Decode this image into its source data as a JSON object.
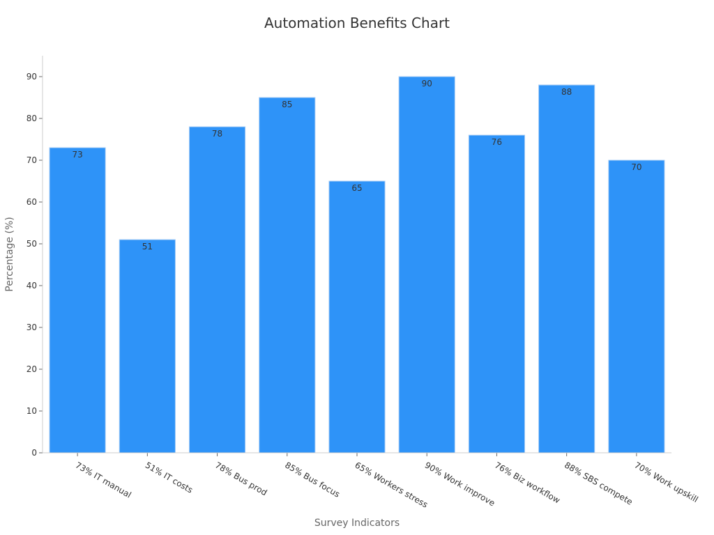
{
  "chart_data": {
    "type": "bar",
    "title": "Automation Benefits Chart",
    "xlabel": "Survey Indicators",
    "ylabel": "Percentage (%)",
    "categories": [
      "73% IT manual",
      "51% IT costs",
      "78% Bus prod",
      "85% Bus focus",
      "65% Workers stress",
      "90% Work improve",
      "76% Biz workflow",
      "88% SBS compete",
      "70% Work upskill"
    ],
    "values": [
      73,
      51,
      78,
      85,
      65,
      90,
      76,
      88,
      70
    ],
    "ylim": [
      0,
      95
    ],
    "yticks": [
      0,
      10,
      20,
      30,
      40,
      50,
      60,
      70,
      80,
      90
    ],
    "grid": false,
    "legend": "none",
    "colors": {
      "bar": "#2e93f8",
      "bar_edge": "#a8cdf5",
      "axis": "#cccccc"
    }
  }
}
